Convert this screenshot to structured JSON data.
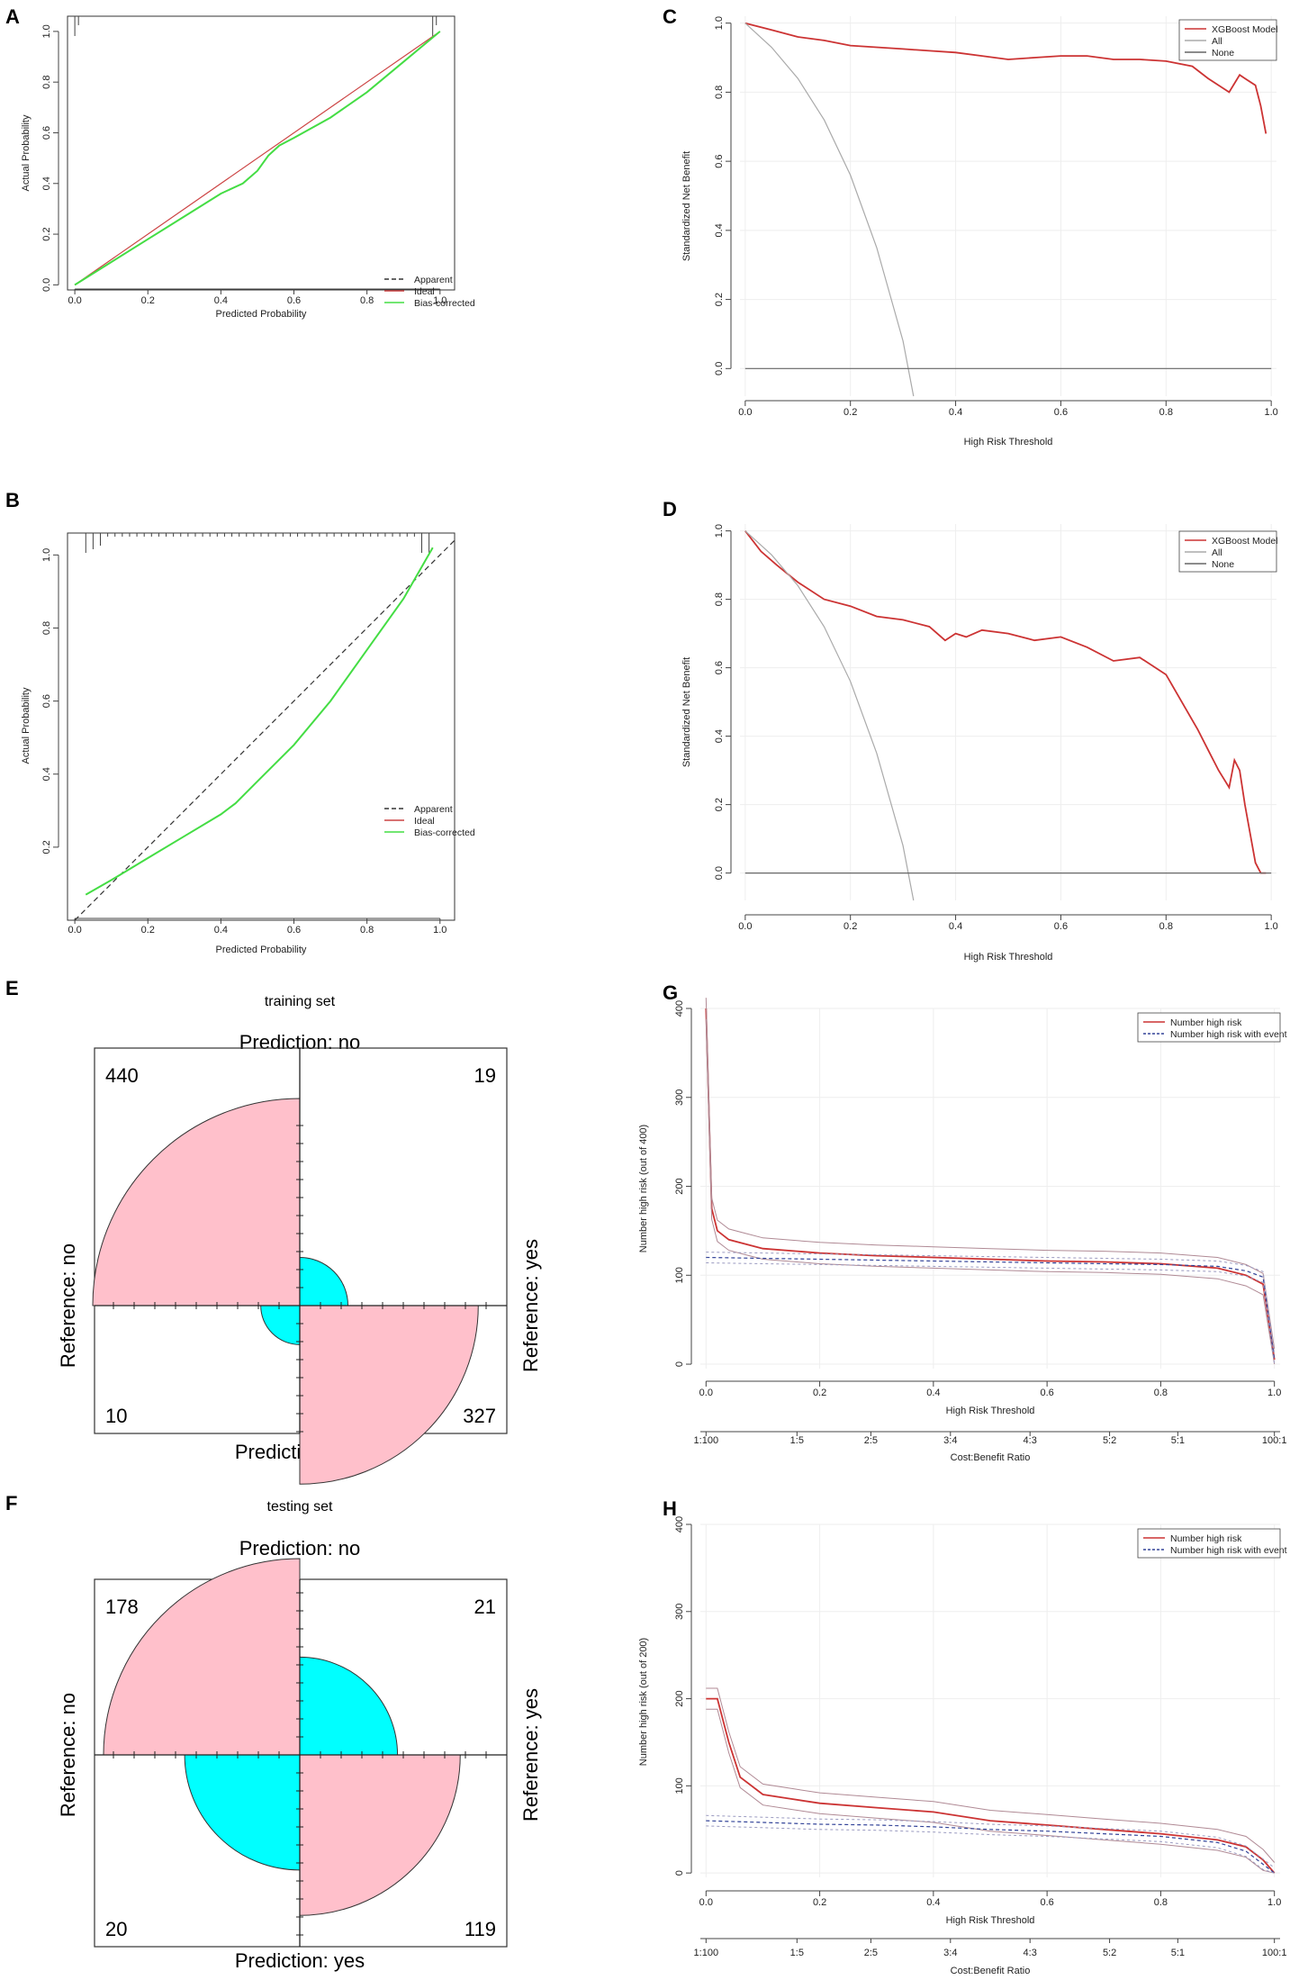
{
  "chart_data": [
    {
      "id": "A",
      "type": "line",
      "panel_label": "A",
      "title": "",
      "xlabel": "Predicted Probability",
      "ylabel": "Actual Probability",
      "xlim": [
        -0.02,
        1.04
      ],
      "ylim": [
        -0.02,
        1.06
      ],
      "xticks": [
        "0.0",
        "0.2",
        "0.4",
        "0.6",
        "0.8",
        "1.0"
      ],
      "yticks": [
        "0.0",
        "0.2",
        "0.4",
        "0.6",
        "0.8",
        "1.0"
      ],
      "legend": [
        "Apparent",
        "Ideal",
        "Bias-corrected"
      ],
      "series": [
        {
          "name": "Apparent",
          "color": "#333333",
          "dash": true,
          "x": [
            0.0,
            0.1,
            0.2,
            0.3,
            0.4,
            0.46,
            0.5,
            0.53,
            0.56,
            0.6,
            0.7,
            0.8,
            0.9,
            1.0
          ],
          "y": [
            0.0,
            0.09,
            0.18,
            0.27,
            0.36,
            0.4,
            0.45,
            0.51,
            0.55,
            0.58,
            0.66,
            0.76,
            0.88,
            1.0
          ]
        },
        {
          "name": "Ideal",
          "color": "#cc4444",
          "dash": false,
          "x": [
            0.0,
            1.0
          ],
          "y": [
            0.0,
            1.0
          ]
        },
        {
          "name": "Bias-corrected",
          "color": "#44dd44",
          "dash": false,
          "x": [
            0.0,
            0.1,
            0.2,
            0.3,
            0.4,
            0.46,
            0.5,
            0.53,
            0.56,
            0.6,
            0.7,
            0.8,
            0.9,
            1.0
          ],
          "y": [
            0.0,
            0.09,
            0.18,
            0.27,
            0.36,
            0.4,
            0.45,
            0.51,
            0.55,
            0.58,
            0.66,
            0.76,
            0.88,
            1.0
          ]
        }
      ]
    },
    {
      "id": "B",
      "type": "line",
      "panel_label": "B",
      "title": "",
      "xlabel": "Predicted Probability",
      "ylabel": "Actual Probability",
      "xlim": [
        -0.02,
        1.04
      ],
      "ylim": [
        0.0,
        1.06
      ],
      "xticks": [
        "0.0",
        "0.2",
        "0.4",
        "0.6",
        "0.8",
        "1.0"
      ],
      "yticks": [
        "0.2",
        "0.4",
        "0.6",
        "0.8",
        "1.0"
      ],
      "legend": [
        "Apparent",
        "Ideal",
        "Bias-corrected"
      ],
      "series": [
        {
          "name": "Apparent",
          "color": "#333333",
          "dash": true,
          "x": [
            0.0,
            1.04
          ],
          "y": [
            0.0,
            1.04
          ]
        },
        {
          "name": "Ideal",
          "color": "#cc4444",
          "dash": false,
          "x": [
            0.03,
            0.1,
            0.2,
            0.3,
            0.4,
            0.44,
            0.5,
            0.6,
            0.7,
            0.8,
            0.9,
            0.98
          ],
          "y": [
            0.07,
            0.11,
            0.17,
            0.23,
            0.29,
            0.32,
            0.38,
            0.48,
            0.6,
            0.74,
            0.88,
            1.02
          ]
        },
        {
          "name": "Bias-corrected",
          "color": "#44dd44",
          "dash": false,
          "x": [
            0.03,
            0.1,
            0.2,
            0.3,
            0.4,
            0.44,
            0.5,
            0.6,
            0.7,
            0.8,
            0.9,
            0.98
          ],
          "y": [
            0.07,
            0.11,
            0.17,
            0.23,
            0.29,
            0.32,
            0.38,
            0.48,
            0.6,
            0.74,
            0.88,
            1.02
          ]
        }
      ]
    },
    {
      "id": "C",
      "type": "line",
      "panel_label": "C",
      "title": "",
      "xlabel": "High Risk Threshold",
      "ylabel": "Standardized Net Benefit",
      "xlim": [
        -0.01,
        1.01
      ],
      "ylim": [
        -0.08,
        1.02
      ],
      "xticks": [
        "0.0",
        "0.2",
        "0.4",
        "0.6",
        "0.8",
        "1.0"
      ],
      "yticks": [
        "0.0",
        "0.2",
        "0.4",
        "0.6",
        "0.8",
        "1.0"
      ],
      "legend": [
        "XGBoost Model",
        "All",
        "None"
      ],
      "series": [
        {
          "name": "XGBoost Model",
          "color": "#cc3333",
          "x": [
            0.0,
            0.05,
            0.1,
            0.15,
            0.2,
            0.25,
            0.3,
            0.35,
            0.4,
            0.45,
            0.5,
            0.55,
            0.6,
            0.65,
            0.7,
            0.75,
            0.8,
            0.85,
            0.88,
            0.9,
            0.92,
            0.94,
            0.95,
            0.97,
            0.98,
            0.99
          ],
          "y": [
            1.0,
            0.98,
            0.96,
            0.95,
            0.935,
            0.93,
            0.925,
            0.92,
            0.915,
            0.905,
            0.895,
            0.9,
            0.905,
            0.905,
            0.895,
            0.895,
            0.89,
            0.875,
            0.84,
            0.82,
            0.8,
            0.85,
            0.84,
            0.82,
            0.76,
            0.68
          ]
        },
        {
          "name": "All",
          "color": "#aaaaaa",
          "x": [
            0.0,
            0.05,
            0.1,
            0.15,
            0.2,
            0.25,
            0.3,
            0.32
          ],
          "y": [
            1.0,
            0.93,
            0.84,
            0.72,
            0.56,
            0.35,
            0.08,
            -0.08
          ]
        },
        {
          "name": "None",
          "color": "#666666",
          "x": [
            0.0,
            1.0
          ],
          "y": [
            0.0,
            0.0
          ]
        }
      ]
    },
    {
      "id": "D",
      "type": "line",
      "panel_label": "D",
      "title": "",
      "xlabel": "High Risk Threshold",
      "ylabel": "Standardized Net Benefit",
      "xlim": [
        -0.01,
        1.01
      ],
      "ylim": [
        -0.08,
        1.02
      ],
      "xticks": [
        "0.0",
        "0.2",
        "0.4",
        "0.6",
        "0.8",
        "1.0"
      ],
      "yticks": [
        "0.0",
        "0.2",
        "0.4",
        "0.6",
        "0.8",
        "1.0"
      ],
      "legend": [
        "XGBoost Model",
        "All",
        "None"
      ],
      "series": [
        {
          "name": "XGBoost Model",
          "color": "#cc3333",
          "x": [
            0.0,
            0.03,
            0.06,
            0.1,
            0.15,
            0.2,
            0.25,
            0.3,
            0.35,
            0.38,
            0.4,
            0.42,
            0.45,
            0.5,
            0.55,
            0.6,
            0.65,
            0.7,
            0.75,
            0.8,
            0.83,
            0.86,
            0.88,
            0.9,
            0.92,
            0.93,
            0.94,
            0.95,
            0.97,
            0.98,
            0.99
          ],
          "y": [
            1.0,
            0.94,
            0.9,
            0.85,
            0.8,
            0.78,
            0.75,
            0.74,
            0.72,
            0.68,
            0.7,
            0.69,
            0.71,
            0.7,
            0.68,
            0.69,
            0.66,
            0.62,
            0.63,
            0.58,
            0.5,
            0.42,
            0.36,
            0.3,
            0.25,
            0.33,
            0.3,
            0.2,
            0.03,
            0.0,
            0.0
          ]
        },
        {
          "name": "All",
          "color": "#aaaaaa",
          "x": [
            0.0,
            0.05,
            0.1,
            0.15,
            0.2,
            0.25,
            0.3,
            0.32
          ],
          "y": [
            1.0,
            0.93,
            0.84,
            0.72,
            0.56,
            0.35,
            0.08,
            -0.08
          ]
        },
        {
          "name": "None",
          "color": "#666666",
          "x": [
            0.0,
            1.0
          ],
          "y": [
            0.0,
            0.0
          ]
        }
      ]
    },
    {
      "id": "E",
      "type": "fourfold",
      "panel_label": "E",
      "title": "training set",
      "top_label": "Prediction: no",
      "bottom_label": "Prediction: yes",
      "left_label": "Reference: no",
      "right_label": "Reference: yes",
      "counts": {
        "top_left": 440,
        "top_right": 19,
        "bottom_left": 10,
        "bottom_right": 327
      },
      "colors": {
        "large": "#ffc0cb",
        "small": "#00ffff"
      }
    },
    {
      "id": "F",
      "type": "fourfold",
      "panel_label": "F",
      "title": "testing set",
      "top_label": "Prediction: no",
      "bottom_label": "Prediction: yes",
      "left_label": "Reference: no",
      "right_label": "Reference: yes",
      "counts": {
        "top_left": 178,
        "top_right": 21,
        "bottom_left": 20,
        "bottom_right": 119
      },
      "colors": {
        "large": "#ffc0cb",
        "small": "#00ffff"
      }
    },
    {
      "id": "G",
      "type": "line",
      "panel_label": "G",
      "title": "",
      "xlabel": "High Risk Threshold",
      "ylabel": "Number high risk (out of 400)",
      "xlim": [
        -0.01,
        1.01
      ],
      "ylim": [
        -5,
        400
      ],
      "xticks": [
        "0.0",
        "0.2",
        "0.4",
        "0.6",
        "0.8",
        "1.0"
      ],
      "yticks": [
        "0",
        "100",
        "200",
        "300",
        "400"
      ],
      "cost_benefit_label": "Cost:Benefit Ratio",
      "cost_benefit_ticks": [
        "1:100",
        "1:5",
        "2:5",
        "3:4",
        "4:3",
        "5:2",
        "5:1",
        "100:1"
      ],
      "legend": [
        "Number high risk",
        "Number high risk with event"
      ],
      "series": [
        {
          "name": "Number high risk",
          "color": "#cc3333",
          "x": [
            0.0,
            0.01,
            0.02,
            0.04,
            0.07,
            0.1,
            0.2,
            0.3,
            0.4,
            0.5,
            0.6,
            0.7,
            0.8,
            0.9,
            0.95,
            0.98,
            1.0
          ],
          "y": [
            400,
            175,
            150,
            140,
            135,
            130,
            125,
            122,
            120,
            118,
            116,
            115,
            113,
            108,
            100,
            90,
            5
          ]
        },
        {
          "name": "Number high risk with event",
          "color": "#334499",
          "x": [
            0.0,
            0.1,
            0.2,
            0.3,
            0.4,
            0.5,
            0.6,
            0.7,
            0.8,
            0.9,
            0.95,
            0.98,
            1.0
          ],
          "y": [
            120,
            119,
            118,
            117,
            116,
            115,
            114,
            113,
            112,
            110,
            105,
            98,
            5
          ]
        }
      ]
    },
    {
      "id": "H",
      "type": "line",
      "panel_label": "H",
      "title": "",
      "xlabel": "High Risk Threshold",
      "ylabel": "Number high risk (out of 200)",
      "xlim": [
        -0.01,
        1.01
      ],
      "ylim": [
        -5,
        400
      ],
      "xticks": [
        "0.0",
        "0.2",
        "0.4",
        "0.6",
        "0.8",
        "1.0"
      ],
      "yticks": [
        "0",
        "100",
        "200",
        "300",
        "400"
      ],
      "cost_benefit_label": "Cost:Benefit Ratio",
      "cost_benefit_ticks": [
        "1:100",
        "1:5",
        "2:5",
        "3:4",
        "4:3",
        "5:2",
        "5:1",
        "100:1"
      ],
      "legend": [
        "Number high risk",
        "Number high risk with event"
      ],
      "series": [
        {
          "name": "Number high risk",
          "color": "#cc3333",
          "x": [
            0.0,
            0.02,
            0.04,
            0.06,
            0.1,
            0.15,
            0.2,
            0.3,
            0.4,
            0.5,
            0.6,
            0.7,
            0.8,
            0.9,
            0.95,
            0.98,
            1.0
          ],
          "y": [
            200,
            200,
            150,
            110,
            90,
            85,
            80,
            75,
            70,
            60,
            55,
            50,
            45,
            38,
            30,
            15,
            0
          ]
        },
        {
          "name": "Number high risk with event",
          "color": "#334499",
          "x": [
            0.0,
            0.1,
            0.2,
            0.3,
            0.4,
            0.5,
            0.6,
            0.7,
            0.8,
            0.9,
            0.95,
            0.98,
            1.0
          ],
          "y": [
            60,
            58,
            56,
            55,
            53,
            50,
            48,
            45,
            42,
            35,
            25,
            10,
            0
          ]
        }
      ]
    }
  ]
}
